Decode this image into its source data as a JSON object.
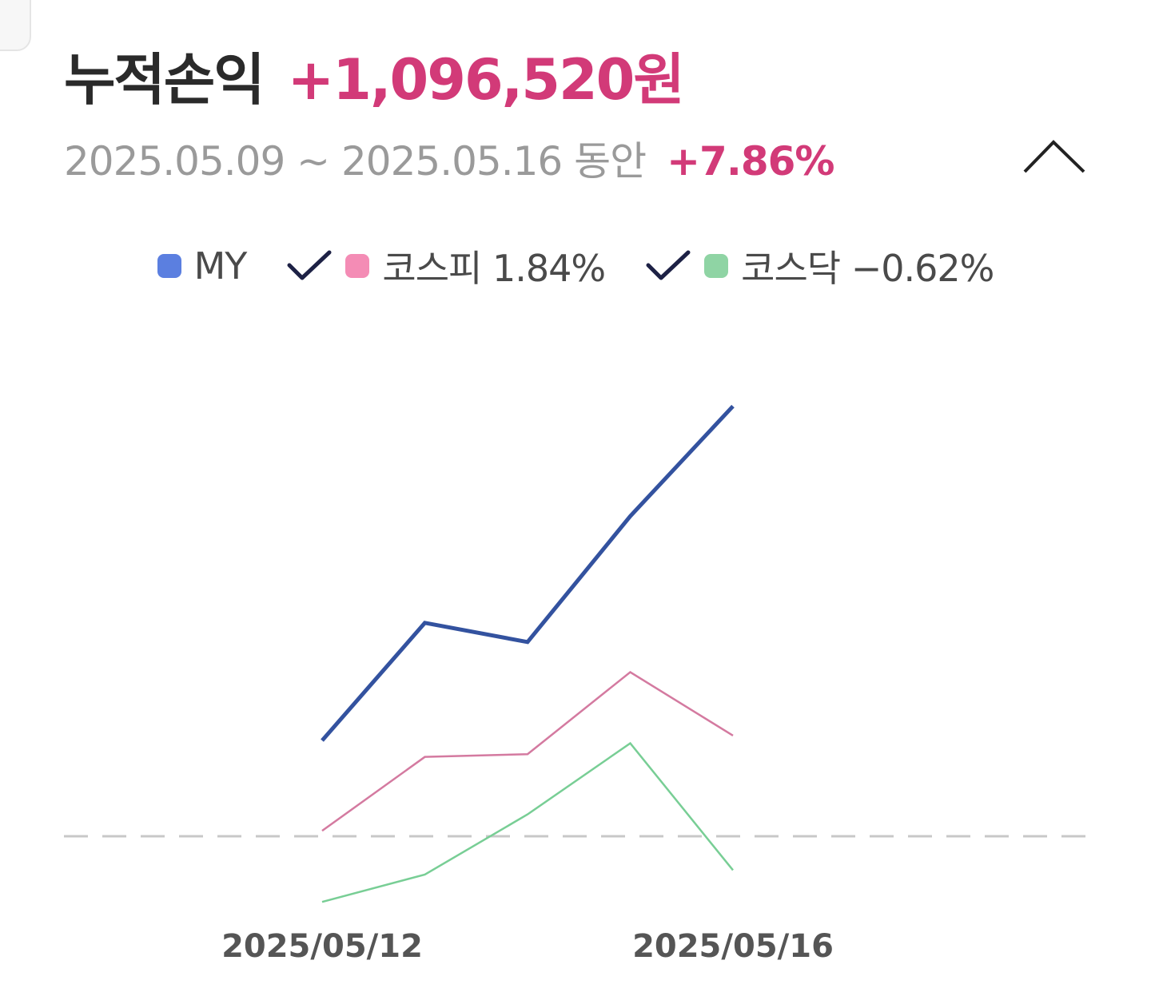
{
  "header": {
    "title": "누적손익",
    "total_profit": "+1,096,520원",
    "period": "2025.05.09 ~ 2025.05.16 동안",
    "period_change": "+7.86%",
    "collapse_icon": "chevron-up-icon"
  },
  "legend": {
    "items": [
      {
        "label": "MY",
        "checked": null,
        "color": "#5b7fe0"
      },
      {
        "label": "코스피 1.84%",
        "checked": true,
        "color": "#f48cb5"
      },
      {
        "label": "코스닥 −0.62%",
        "checked": true,
        "color": "#8fd4a4"
      }
    ],
    "check_icon": "checkmark-icon"
  },
  "chart_data": {
    "type": "line",
    "x": [
      "",
      "",
      "2025/05/12",
      "",
      "",
      "",
      "2025/05/16"
    ],
    "xticks": [
      {
        "index": 2,
        "label": "2025/05/12"
      },
      {
        "index": 6,
        "label": "2025/05/16"
      }
    ],
    "series": [
      {
        "name": "MY",
        "color": "#33529f",
        "width": 5,
        "values": [
          null,
          null,
          1.75,
          3.9,
          3.55,
          5.85,
          7.86
        ]
      },
      {
        "name": "코스피",
        "color": "#d47aa0",
        "width": 2.5,
        "values": [
          null,
          null,
          0.1,
          1.45,
          1.5,
          3.0,
          1.84
        ]
      },
      {
        "name": "코스닥",
        "color": "#78ce95",
        "width": 2.5,
        "values": [
          null,
          null,
          -1.2,
          -0.7,
          0.4,
          1.7,
          -0.62
        ]
      }
    ],
    "baseline": 0,
    "ylim": [
      -2,
      14
    ],
    "grid": false
  }
}
